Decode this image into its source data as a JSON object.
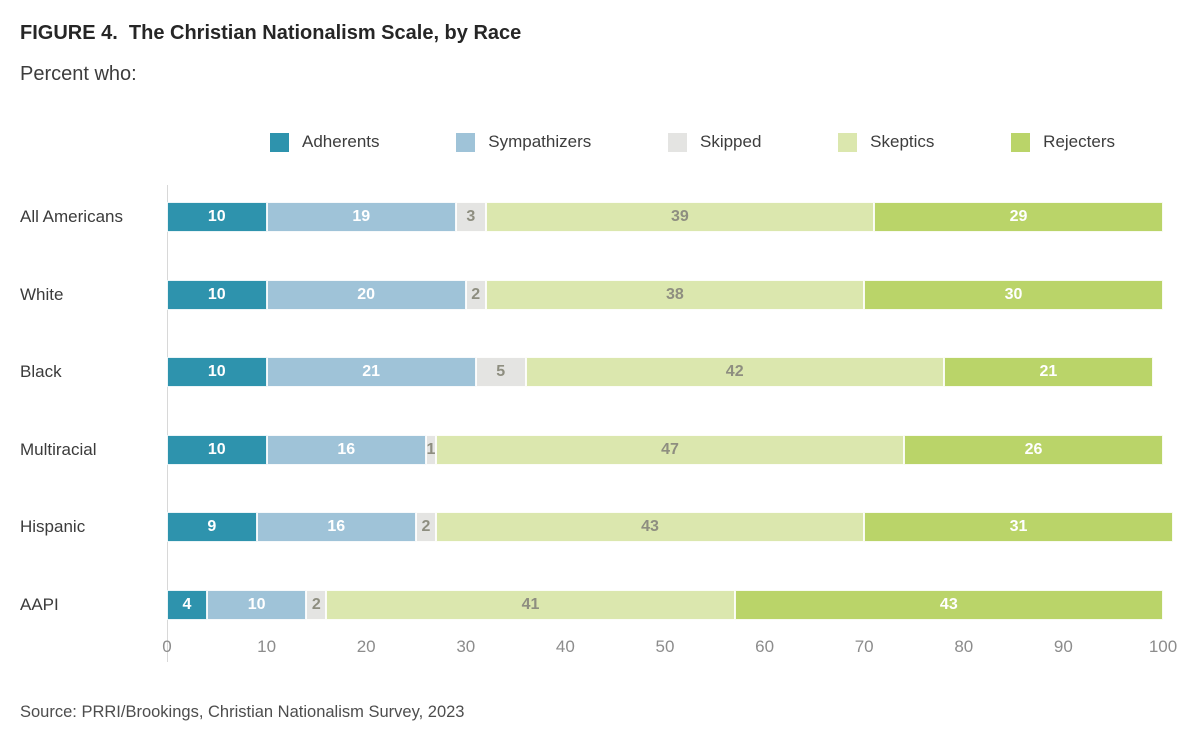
{
  "figure": {
    "title": "FIGURE 4.  The Christian Nationalism Scale, by Race",
    "subtitle": "Percent who:",
    "source": "Source: PRRI/Brookings, Christian Nationalism Survey, 2023"
  },
  "chart_data": {
    "type": "bar",
    "orientation": "horizontal",
    "stacked": true,
    "title": "FIGURE 4.  The Christian Nationalism Scale, by Race",
    "subtitle": "Percent who:",
    "source": "Source: PRRI/Brookings, Christian Nationalism Survey, 2023",
    "categories": [
      "All Americans",
      "White",
      "Black",
      "Multiracial",
      "Hispanic",
      "AAPI"
    ],
    "series": [
      {
        "name": "Adherents",
        "color": "#2e93ad",
        "label_color": "#ffffff",
        "values": [
          10,
          10,
          10,
          10,
          9,
          4
        ]
      },
      {
        "name": "Sympathizers",
        "color": "#9fc3d8",
        "label_color": "#ffffff",
        "values": [
          19,
          20,
          21,
          16,
          16,
          10
        ]
      },
      {
        "name": "Skipped",
        "color": "#e4e4e2",
        "label_color": "#8e8e80",
        "values": [
          3,
          2,
          5,
          1,
          2,
          2
        ]
      },
      {
        "name": "Skeptics",
        "color": "#dbe7ae",
        "label_color": "#8e8e80",
        "values": [
          39,
          38,
          42,
          47,
          43,
          41
        ]
      },
      {
        "name": "Rejecters",
        "color": "#bad469",
        "label_color": "#ffffff",
        "values": [
          29,
          30,
          21,
          26,
          31,
          43
        ]
      }
    ],
    "x_ticks": [
      0,
      10,
      20,
      30,
      40,
      50,
      60,
      70,
      80,
      90,
      100
    ],
    "xlim": [
      0,
      100
    ],
    "grid": false,
    "legend_position": "top",
    "axis_line_color": "#d8d8d8",
    "tick_label_color": "#8c8c8c"
  }
}
